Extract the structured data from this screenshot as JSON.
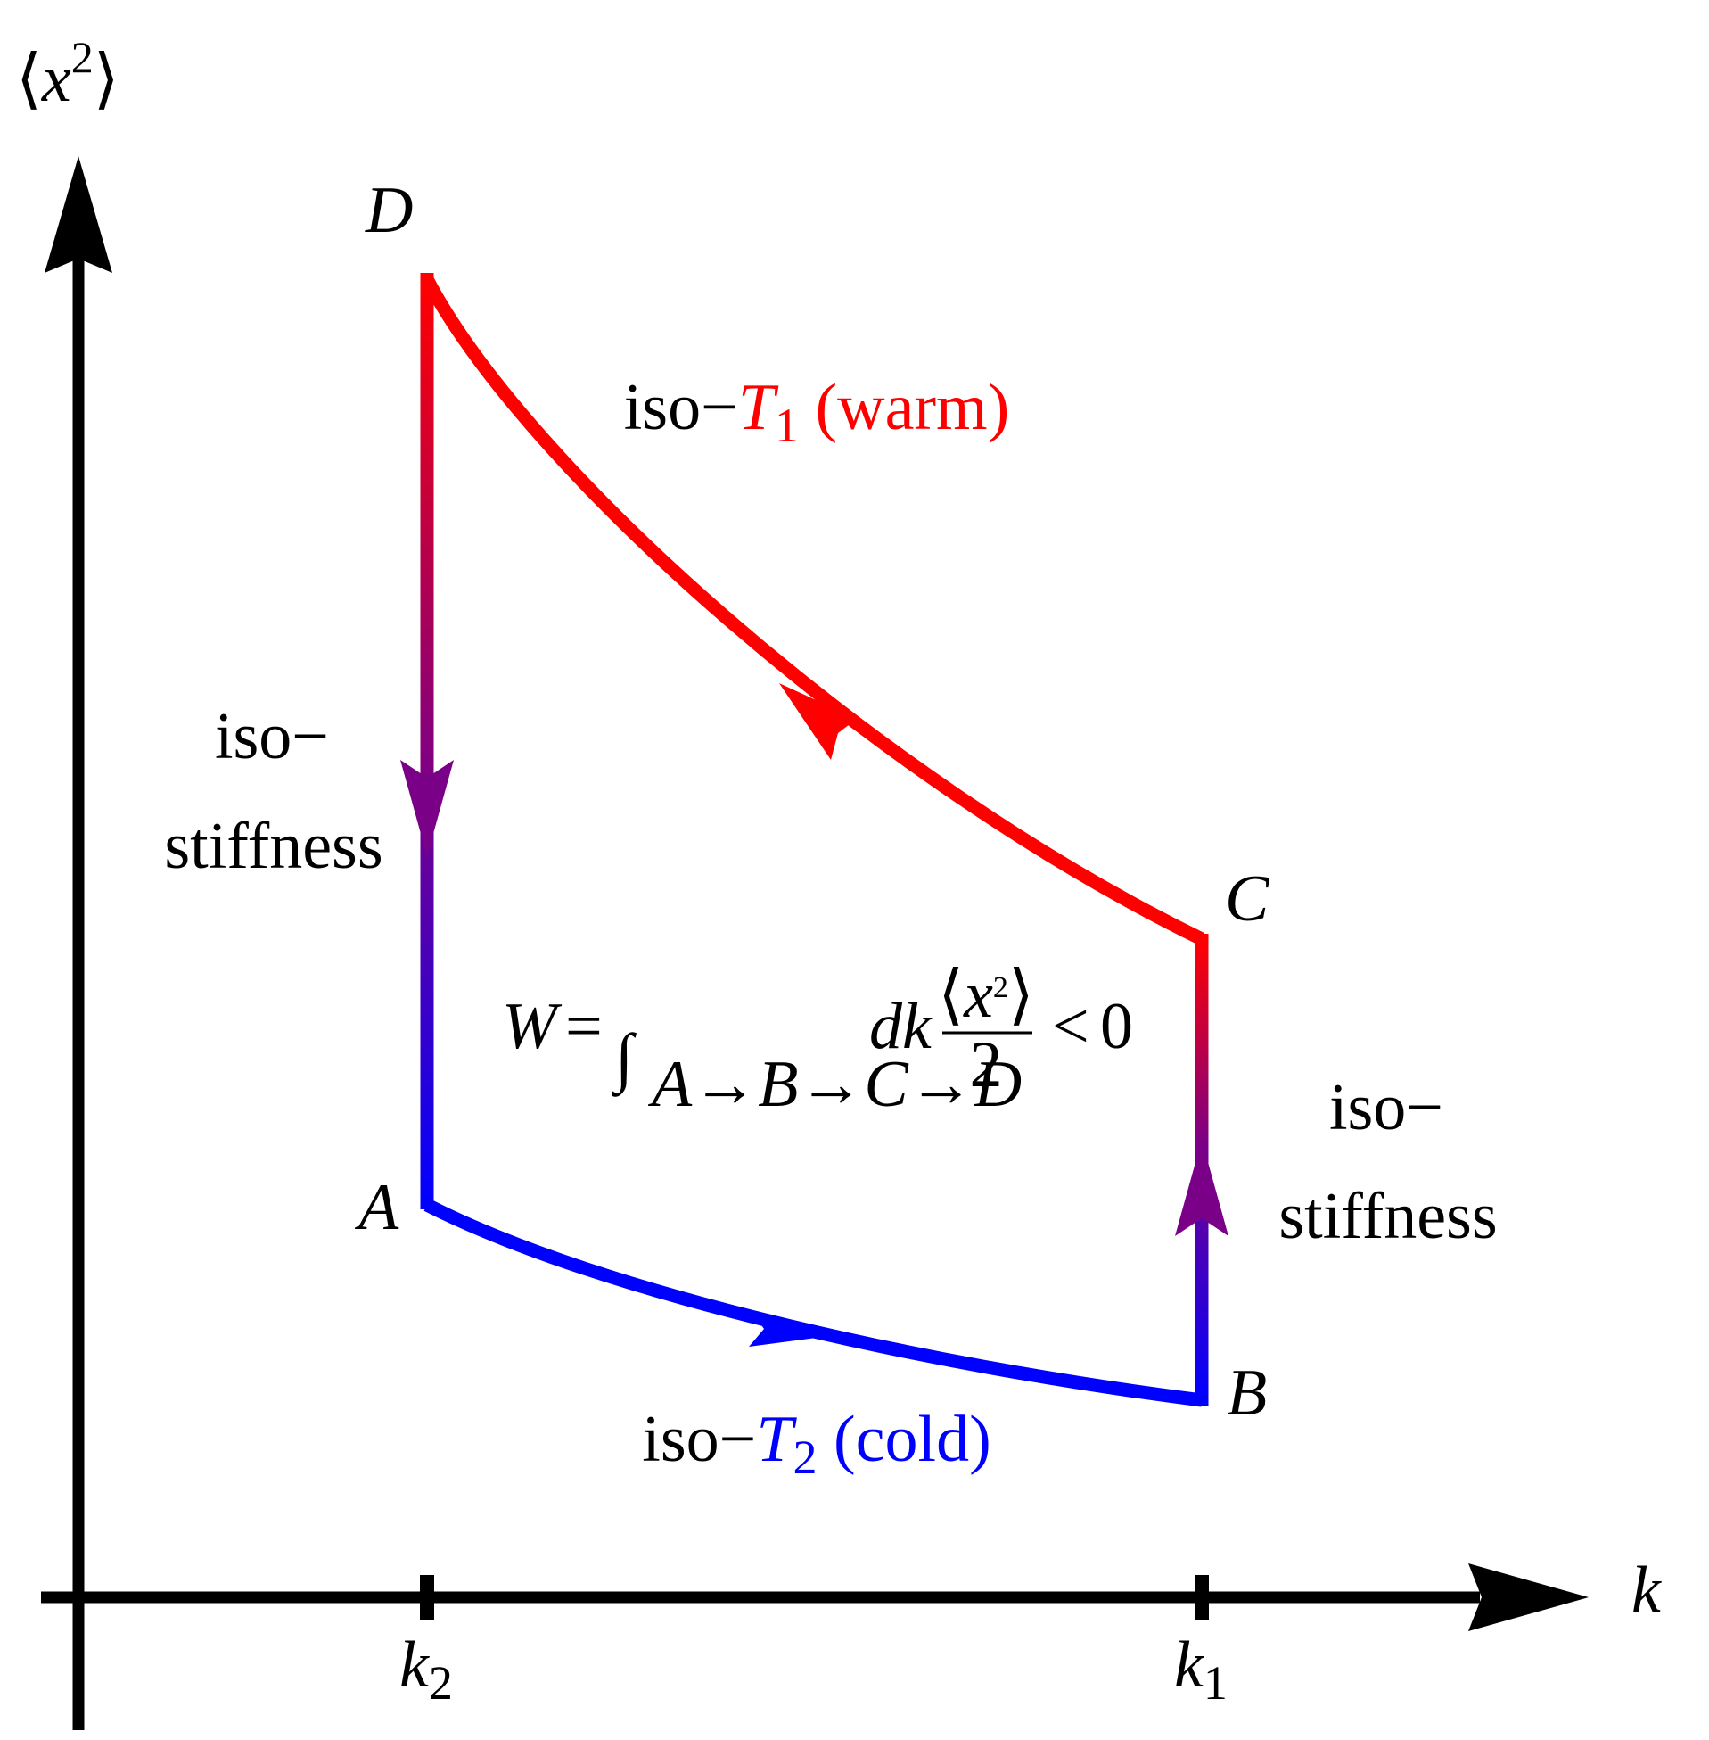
{
  "axes": {
    "y_label": {
      "open": "⟨",
      "symbol": "x",
      "superscript": "2",
      "close": "⟩"
    },
    "x_label": "k",
    "x_ticks": [
      {
        "symbol": "k",
        "subscript": "2"
      },
      {
        "symbol": "k",
        "subscript": "1"
      }
    ]
  },
  "points": {
    "A": "A",
    "B": "B",
    "C": "C",
    "D": "D"
  },
  "processes": {
    "warm": {
      "prefix": "iso−",
      "symbol": "T",
      "subscript": "1",
      "suffix": " (warm)"
    },
    "cold": {
      "prefix": "iso−",
      "symbol": "T",
      "subscript": "2",
      "suffix": " (cold)"
    },
    "left_stiffness": {
      "line1": "iso−",
      "line2": "stiffness"
    },
    "right_stiffness": {
      "line1": "iso−",
      "line2": "stiffness"
    }
  },
  "formula": {
    "lhs": "W",
    "equals": "=",
    "integral": "∫",
    "limits": "A→B→C→D",
    "differential": "dk",
    "numerator": {
      "open": "⟨",
      "symbol": "x",
      "superscript": "2",
      "close": "⟩"
    },
    "denominator": "2",
    "relation": "<",
    "rhs": "0"
  }
}
